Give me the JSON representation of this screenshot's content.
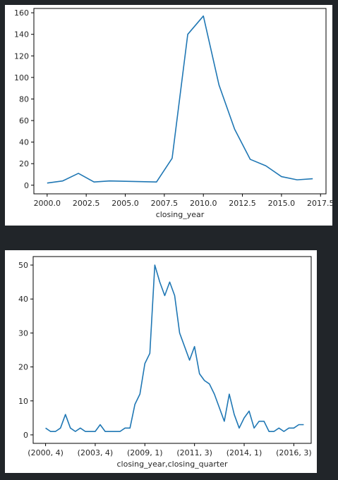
{
  "colors": {
    "background": "#212529",
    "panel": "#ffffff",
    "line": "#1f77b4"
  },
  "chart_data": [
    {
      "type": "line",
      "xlabel": "closing_year",
      "ylabel": "",
      "xlim": [
        1999.15,
        2017.85
      ],
      "ylim": [
        -8,
        164
      ],
      "xticks": [
        2000.0,
        2002.5,
        2005.0,
        2007.5,
        2010.0,
        2012.5,
        2015.0,
        2017.5
      ],
      "xtick_labels": [
        "2000.0",
        "2002.5",
        "2005.0",
        "2007.5",
        "2010.0",
        "2012.5",
        "2015.0",
        "2017.5"
      ],
      "yticks": [
        0,
        20,
        40,
        60,
        80,
        100,
        120,
        140,
        160
      ],
      "ytick_labels": [
        "0",
        "20",
        "40",
        "60",
        "80",
        "100",
        "120",
        "140",
        "160"
      ],
      "grid": false,
      "x": [
        2000,
        2001,
        2002,
        2003,
        2004,
        2007,
        2008,
        2009,
        2010,
        2011,
        2012,
        2013,
        2014,
        2015,
        2016,
        2017
      ],
      "values": [
        2,
        4,
        11,
        3,
        4,
        3,
        25,
        140,
        157,
        93,
        52,
        24,
        18,
        8,
        5,
        6
      ]
    },
    {
      "type": "line",
      "xlabel": "closing_year,closing_quarter",
      "ylabel": "",
      "xlim": [
        -2.5,
        53.5
      ],
      "ylim": [
        -2.5,
        52.5
      ],
      "xticks": [
        0,
        10,
        20,
        30,
        40,
        50
      ],
      "xtick_labels": [
        "(2000, 4)",
        "(2003, 4)",
        "(2009, 1)",
        "(2011, 3)",
        "(2014, 1)",
        "(2016, 3)"
      ],
      "yticks": [
        0,
        10,
        20,
        30,
        40,
        50
      ],
      "ytick_labels": [
        "0",
        "10",
        "20",
        "30",
        "40",
        "50"
      ],
      "grid": false,
      "values": [
        2,
        1,
        1,
        2,
        6,
        2,
        1,
        2,
        1,
        1,
        1,
        3,
        1,
        1,
        1,
        1,
        2,
        2,
        9,
        12,
        21,
        24,
        50,
        45,
        41,
        45,
        41,
        30,
        26,
        22,
        26,
        18,
        16,
        15,
        12,
        8,
        4,
        12,
        6,
        2,
        5,
        7,
        2,
        4,
        4,
        1,
        1,
        2,
        1,
        2,
        2,
        3,
        3
      ]
    }
  ]
}
